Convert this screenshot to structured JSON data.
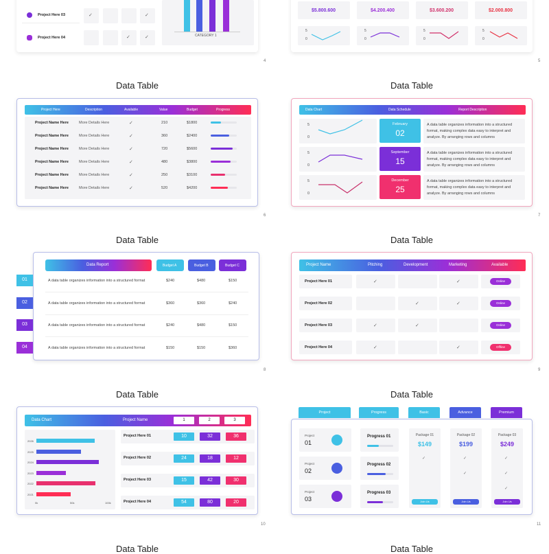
{
  "colors": {
    "cyan": "#3fc1e6",
    "blue": "#4a5fe0",
    "purple": "#7b2fd8",
    "violet": "#9a2fd8",
    "pink": "#e8306e",
    "red": "#ff2d55"
  },
  "top_left": {
    "rows": [
      {
        "label": "Project Here 03",
        "checks": [
          true,
          false,
          false,
          true
        ]
      },
      {
        "label": "Project Here 04",
        "checks": [
          false,
          false,
          true,
          true
        ]
      }
    ],
    "category": "CATEGORY 1",
    "page": "4"
  },
  "top_right": {
    "values": [
      "$5.800.600",
      "$4.200.400",
      "$3.600.200",
      "$2.000.800"
    ],
    "spark_hi": "5",
    "spark_lo": "0",
    "page": "5"
  },
  "s6": {
    "title": "Data Table",
    "headers": [
      "Project Here",
      "Description",
      "Available",
      "Value",
      "Budget",
      "Progress"
    ],
    "rows": [
      {
        "name": "Project Name Here",
        "desc": "More Details Here",
        "value": "210",
        "budget": "$1800",
        "progress": 0.4
      },
      {
        "name": "Project Name Here",
        "desc": "More Details Here",
        "value": "360",
        "budget": "$2400",
        "progress": 0.7
      },
      {
        "name": "Project Name Here",
        "desc": "More Details Here",
        "value": "720",
        "budget": "$5600",
        "progress": 0.85
      },
      {
        "name": "Project Name Here",
        "desc": "More Details Here",
        "value": "480",
        "budget": "$3800",
        "progress": 0.75
      },
      {
        "name": "Project Name Here",
        "desc": "More Details Here",
        "value": "250",
        "budget": "$3100",
        "progress": 0.55
      },
      {
        "name": "Project Name Here",
        "desc": "More Details Here",
        "value": "520",
        "budget": "$4200",
        "progress": 0.65
      }
    ],
    "page": "6"
  },
  "s7": {
    "title": "Data Table",
    "headers": [
      "Data Chart",
      "Data Schedule",
      "Report Description"
    ],
    "rows": [
      {
        "month": "February",
        "day": "02",
        "desc": "A data table organizes information into a structured format, making complex data easy to interpret and analyze. By arranging rows and columns"
      },
      {
        "month": "September",
        "day": "15",
        "desc": "A data table organizes information into a structured format, making complex data easy to interpret and analyze. By arranging rows and columns"
      },
      {
        "month": "December",
        "day": "25",
        "desc": "A data table organizes information into a structured format, making complex data easy to interpret and analyze. By arranging rows and columns"
      }
    ],
    "spark_hi": "5",
    "spark_lo": "0",
    "page": "7"
  },
  "s8": {
    "title": "Data Table",
    "headers": [
      "Data Report",
      "Budget A",
      "Budget B",
      "Budget C"
    ],
    "rows": [
      {
        "num": "01",
        "text": "A data table organizes information into a structured format",
        "a": "$240",
        "b": "$480",
        "c": "$150"
      },
      {
        "num": "02",
        "text": "A data table organizes information into a structured format",
        "a": "$360",
        "b": "$360",
        "c": "$240"
      },
      {
        "num": "03",
        "text": "A data table organizes information into a structured format",
        "a": "$240",
        "b": "$480",
        "c": "$150"
      },
      {
        "num": "04",
        "text": "A data table organizes information into a structured format",
        "a": "$150",
        "b": "$150",
        "c": "$360"
      }
    ],
    "page": "8"
  },
  "s9": {
    "title": "Data Table",
    "headers": [
      "Project Name",
      "Pitching",
      "Development",
      "Marketing",
      "Available"
    ],
    "rows": [
      {
        "name": "Project Here 01",
        "checks": [
          true,
          false,
          true
        ],
        "status": "Online"
      },
      {
        "name": "Project Here 02",
        "checks": [
          false,
          true,
          true
        ],
        "status": "Online"
      },
      {
        "name": "Project Here 03",
        "checks": [
          true,
          true,
          false
        ],
        "status": "Online"
      },
      {
        "name": "Project Here 04",
        "checks": [
          true,
          false,
          true
        ],
        "status": "Offline"
      }
    ],
    "page": "9"
  },
  "s10": {
    "title": "Data Table",
    "header_left": "Data Chart",
    "header_mid": "Project Name",
    "cols": [
      "1",
      "2",
      "3"
    ],
    "years": [
      "2026",
      "2025",
      "2024",
      "2023",
      "2022",
      "2021"
    ],
    "axis": [
      "0k",
      "50k",
      "100k"
    ],
    "rows": [
      {
        "name": "Project Here 01",
        "v": [
          "10",
          "32",
          "36"
        ]
      },
      {
        "name": "Project Here 02",
        "v": [
          "24",
          "18",
          "12"
        ]
      },
      {
        "name": "Project Here 03",
        "v": [
          "15",
          "42",
          "30"
        ]
      },
      {
        "name": "Project Here 04",
        "v": [
          "54",
          "80",
          "20"
        ]
      }
    ],
    "page": "10"
  },
  "s11": {
    "title": "Data Table",
    "tabs": [
      "Project",
      "Progress",
      "Basic",
      "Advance",
      "Premium"
    ],
    "projects": [
      {
        "label": "Project",
        "num": "01"
      },
      {
        "label": "Project",
        "num": "02"
      },
      {
        "label": "Project",
        "num": "03"
      }
    ],
    "progress": [
      "Progress 01",
      "Progress 02",
      "Progress 03"
    ],
    "packages": [
      {
        "name": "Package 01",
        "price": "$149"
      },
      {
        "name": "Package 02",
        "price": "$199"
      },
      {
        "name": "Package 03",
        "price": "$249"
      }
    ],
    "btn": "Join Us",
    "page": "11"
  },
  "bottom": {
    "title_left": "Data Table",
    "title_right": "Data Table"
  }
}
